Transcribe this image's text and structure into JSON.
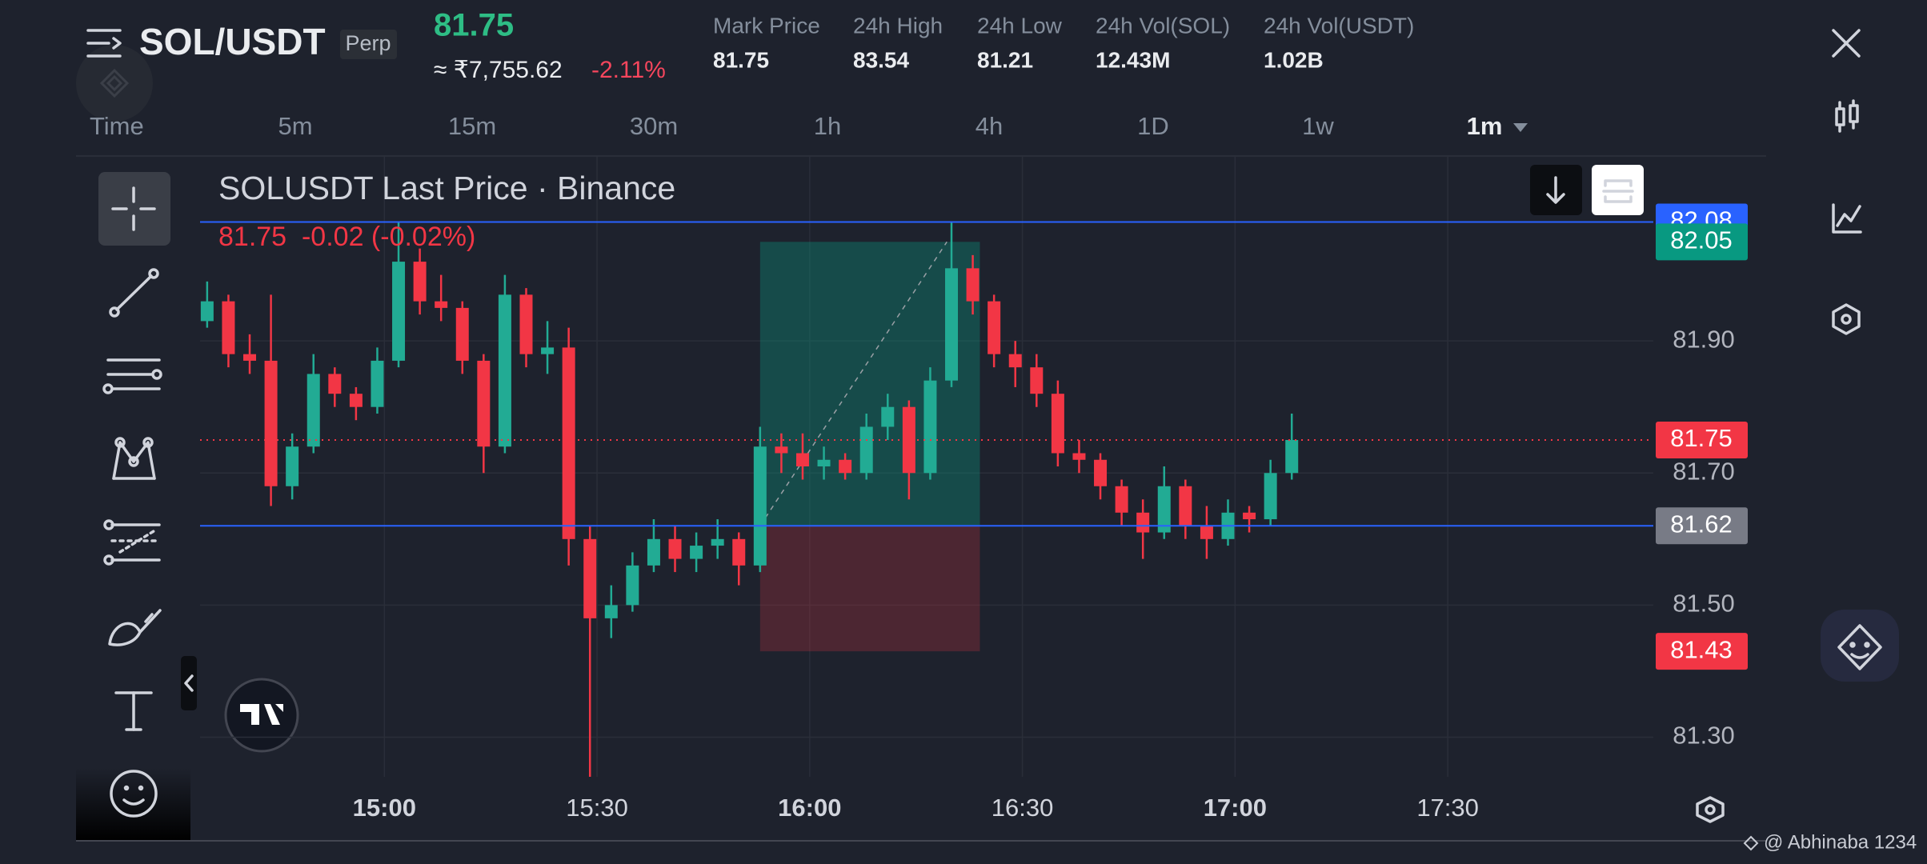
{
  "header": {
    "pair": "SOL/USDT",
    "tag": "Perp",
    "price": "81.75",
    "price_inr": "≈ ₹7,755.62",
    "change": "-2.11%",
    "stats": [
      {
        "label": "Mark Price",
        "value": "81.75"
      },
      {
        "label": "24h High",
        "value": "83.54"
      },
      {
        "label": "24h Low",
        "value": "81.21"
      },
      {
        "label": "24h Vol(SOL)",
        "value": "12.43M"
      },
      {
        "label": "24h Vol(USDT)",
        "value": "1.02B"
      }
    ]
  },
  "timeframes": [
    "Time",
    "5m",
    "15m",
    "30m",
    "1h",
    "4h",
    "1D",
    "1w",
    "1m"
  ],
  "active_timeframe": 8,
  "chart_data": {
    "type": "candlestick",
    "title": "SOLUSDT Last Price · Binance",
    "subtitle": "81.75  -0.02 (-0.02%)",
    "x": [
      "14:35",
      "14:38",
      "14:41",
      "14:44",
      "14:47",
      "14:50",
      "14:53",
      "14:56",
      "14:59",
      "15:02",
      "15:05",
      "15:08",
      "15:11",
      "15:14",
      "15:17",
      "15:20",
      "15:23",
      "15:26",
      "15:29",
      "15:32",
      "15:35",
      "15:38",
      "15:41",
      "15:44",
      "15:47",
      "15:50",
      "15:53",
      "15:56",
      "15:59",
      "16:02",
      "16:05",
      "16:08",
      "16:11",
      "16:14",
      "16:17",
      "16:20",
      "16:23",
      "16:26",
      "16:29",
      "16:32",
      "16:35",
      "16:38",
      "16:41",
      "16:44",
      "16:47",
      "16:50",
      "16:53",
      "16:56",
      "16:59",
      "17:02",
      "17:05",
      "17:08"
    ],
    "open": [
      81.93,
      81.96,
      81.88,
      81.87,
      81.68,
      81.74,
      81.85,
      81.82,
      81.8,
      81.87,
      82.02,
      81.96,
      81.95,
      81.87,
      81.74,
      81.97,
      81.88,
      81.89,
      81.6,
      81.48,
      81.5,
      81.56,
      81.6,
      81.57,
      81.59,
      81.6,
      81.56,
      81.74,
      81.73,
      81.71,
      81.72,
      81.7,
      81.77,
      81.8,
      81.7,
      81.84,
      82.01,
      81.96,
      81.88,
      81.86,
      81.82,
      81.73,
      81.72,
      81.68,
      81.64,
      81.61,
      81.68,
      81.62,
      81.6,
      81.64,
      81.63,
      81.7
    ],
    "high": [
      81.99,
      81.97,
      81.91,
      81.97,
      81.76,
      81.88,
      81.86,
      81.83,
      81.89,
      82.08,
      82.04,
      82.0,
      81.96,
      81.88,
      82.0,
      81.98,
      81.93,
      81.92,
      81.62,
      81.53,
      81.58,
      81.63,
      81.62,
      81.61,
      81.63,
      81.61,
      81.77,
      81.76,
      81.76,
      81.74,
      81.73,
      81.79,
      81.82,
      81.81,
      81.86,
      82.08,
      82.03,
      81.97,
      81.9,
      81.88,
      81.84,
      81.75,
      81.73,
      81.69,
      81.66,
      81.71,
      81.69,
      81.65,
      81.66,
      81.65,
      81.72,
      81.79
    ],
    "low": [
      81.92,
      81.86,
      81.85,
      81.65,
      81.66,
      81.73,
      81.8,
      81.78,
      81.79,
      81.86,
      81.94,
      81.93,
      81.85,
      81.7,
      81.73,
      81.86,
      81.85,
      81.56,
      81.24,
      81.45,
      81.49,
      81.55,
      81.55,
      81.55,
      81.57,
      81.53,
      81.55,
      81.7,
      81.69,
      81.69,
      81.69,
      81.69,
      81.75,
      81.66,
      81.69,
      81.83,
      81.94,
      81.86,
      81.83,
      81.8,
      81.71,
      81.7,
      81.66,
      81.62,
      81.57,
      81.6,
      81.6,
      81.57,
      81.59,
      81.61,
      81.62,
      81.69
    ],
    "close": [
      81.96,
      81.88,
      81.87,
      81.68,
      81.74,
      81.85,
      81.82,
      81.8,
      81.87,
      82.02,
      81.96,
      81.95,
      81.87,
      81.74,
      81.97,
      81.88,
      81.89,
      81.6,
      81.48,
      81.5,
      81.56,
      81.6,
      81.57,
      81.59,
      81.6,
      81.56,
      81.74,
      81.73,
      81.71,
      81.72,
      81.7,
      81.77,
      81.8,
      81.7,
      81.84,
      82.01,
      81.96,
      81.88,
      81.86,
      81.82,
      81.73,
      81.72,
      81.68,
      81.64,
      81.61,
      81.68,
      81.62,
      81.6,
      81.64,
      81.63,
      81.7,
      81.75
    ],
    "up_color": "#22ab94",
    "down_color": "#f23645",
    "xlim": [
      "14:34",
      "17:59"
    ],
    "xticks": [
      "15:00",
      "15:30",
      "16:00",
      "16:30",
      "17:00",
      "17:30"
    ],
    "ylim": [
      81.24,
      82.18
    ],
    "yticks": [
      {
        "value": 81.9,
        "label": "81.90"
      },
      {
        "value": 81.7,
        "label": "81.70"
      },
      {
        "value": 81.5,
        "label": "81.50"
      },
      {
        "value": 81.3,
        "label": "81.30"
      }
    ],
    "grid": true,
    "price_labels": [
      {
        "value": 82.08,
        "color": "#2962ff",
        "line": "#2962ff"
      },
      {
        "value": 82.05,
        "color": "#089981"
      },
      {
        "value": 81.75,
        "color": "#f23645",
        "line": "#f23645",
        "dash": true
      },
      {
        "value": 81.62,
        "color": "#787b86",
        "line": "#2962ff"
      },
      {
        "value": 81.43,
        "color": "#f23645"
      }
    ],
    "position": {
      "start": "15:53",
      "end": "16:24",
      "target": 82.05,
      "entry": 81.62,
      "stop": 81.43
    }
  },
  "watermark": "@ Abhinaba 1234"
}
